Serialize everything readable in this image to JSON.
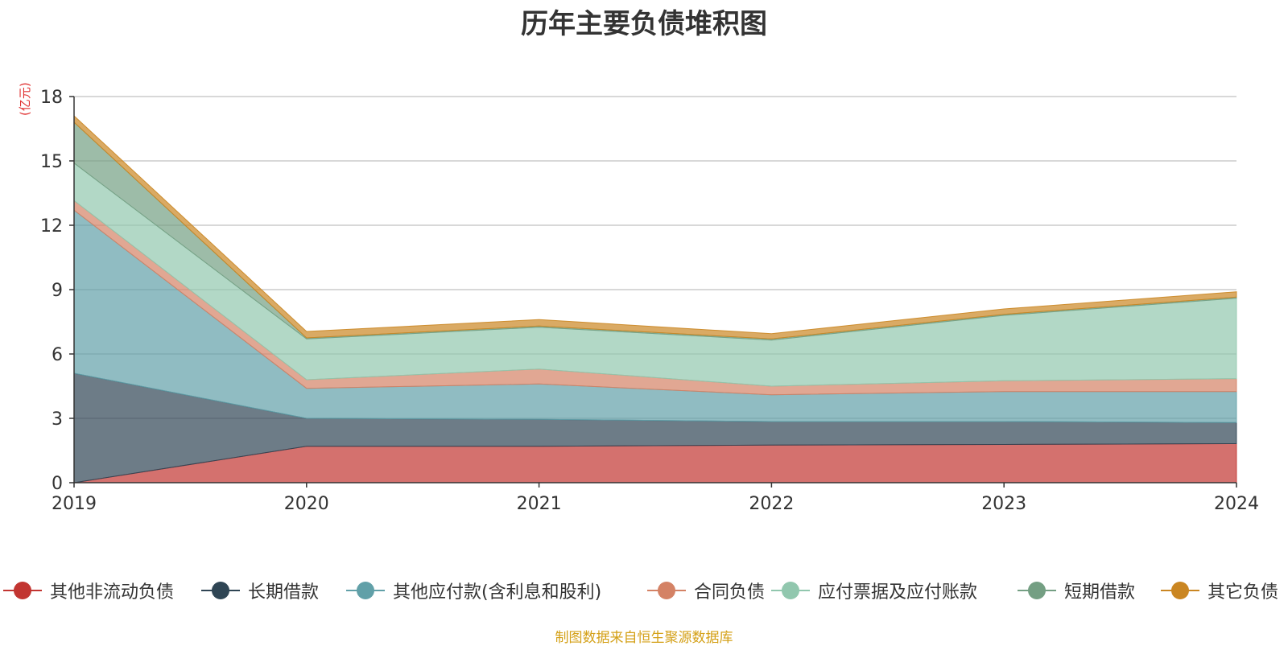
{
  "page": {
    "title": "历年主要负债堆积图",
    "unit_label": "(亿元)",
    "source": "制图数据来自恒生聚源数据库"
  },
  "chart_data": {
    "type": "area",
    "stacked": true,
    "title": "历年主要负债堆积图",
    "ylabel": "(亿元)",
    "xlabel": "",
    "ylim": [
      0,
      18
    ],
    "yticks": [
      0,
      3,
      6,
      9,
      12,
      15,
      18
    ],
    "categories": [
      "2019",
      "2020",
      "2021",
      "2022",
      "2023",
      "2024"
    ],
    "grid": true,
    "legend_position": "bottom",
    "series": [
      {
        "name": "其他非流动负债",
        "color": "#c23531",
        "values": [
          0.0,
          1.7,
          1.7,
          1.75,
          1.78,
          1.82
        ]
      },
      {
        "name": "长期借款",
        "color": "#2f4554",
        "values": [
          5.1,
          1.3,
          1.25,
          1.1,
          1.07,
          0.98
        ]
      },
      {
        "name": "其他应付款(含利息和股利)",
        "color": "#61a0a8",
        "values": [
          7.6,
          1.4,
          1.65,
          1.25,
          1.4,
          1.45
        ]
      },
      {
        "name": "合同负债",
        "color": "#d48265",
        "values": [
          0.45,
          0.4,
          0.7,
          0.4,
          0.5,
          0.6
        ]
      },
      {
        "name": "应付票据及应付账款",
        "color": "#91c7ae",
        "values": [
          1.75,
          1.9,
          1.95,
          2.15,
          3.05,
          3.75
        ]
      },
      {
        "name": "短期借款",
        "color": "#749f83",
        "values": [
          1.9,
          0.05,
          0.05,
          0.05,
          0.05,
          0.05
        ]
      },
      {
        "name": "其它负债",
        "color": "#ca8622",
        "values": [
          0.3,
          0.3,
          0.3,
          0.25,
          0.25,
          0.25
        ]
      }
    ]
  }
}
